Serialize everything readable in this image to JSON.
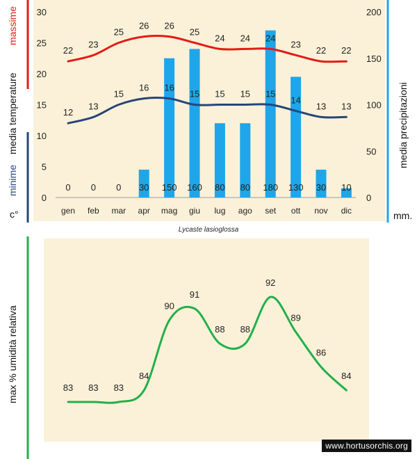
{
  "chart_data": [
    {
      "type": "bar+line",
      "title": "Lycaste lasioglossa",
      "categories": [
        "gen",
        "feb",
        "mar",
        "apr",
        "mag",
        "giu",
        "lug",
        "ago",
        "set",
        "ott",
        "nov",
        "dic"
      ],
      "series": [
        {
          "name": "massime",
          "kind": "line",
          "axis": "left",
          "color": "#e41b17",
          "values": [
            22,
            23,
            25,
            26,
            26,
            25,
            24,
            24,
            24,
            23,
            22,
            22
          ]
        },
        {
          "name": "minime",
          "kind": "line",
          "axis": "left",
          "color": "#27457a",
          "values": [
            12,
            13,
            15,
            16,
            16,
            15,
            15,
            15,
            15,
            14,
            13,
            13
          ]
        },
        {
          "name": "precipitazioni",
          "kind": "bar",
          "axis": "right",
          "color": "#1ea6ea",
          "values": [
            0,
            0,
            0,
            30,
            150,
            160,
            80,
            80,
            180,
            130,
            30,
            10
          ]
        }
      ],
      "left_axis": {
        "ylim": [
          0,
          30
        ],
        "ticks": [
          0,
          5,
          10,
          15,
          20,
          25,
          30
        ],
        "label_top": "massime",
        "label_mid": "media  temperature",
        "label_bottom": "minime",
        "unit": "c°"
      },
      "right_axis": {
        "ylim": [
          0,
          200
        ],
        "ticks": [
          0,
          50,
          100,
          150,
          200
        ],
        "label": "media  precipitazioni",
        "unit": "mm."
      }
    },
    {
      "type": "line",
      "title": "",
      "categories": [
        "gen",
        "feb",
        "mar",
        "apr",
        "mag",
        "giu",
        "lug",
        "ago",
        "set",
        "ott",
        "nov",
        "dic"
      ],
      "series": [
        {
          "name": "umidità relativa",
          "color": "#22b04a",
          "values": [
            83,
            83,
            83,
            84,
            90,
            91,
            88,
            88,
            92,
            89,
            86,
            84
          ]
        }
      ],
      "ylabel": "max  %  umidità relativa"
    }
  ],
  "colors": {
    "max": "#e41b17",
    "min": "#27457a",
    "rain": "#1ea6ea",
    "humidity": "#22b04a",
    "panel": "#fbf1d8"
  },
  "watermark": "www.hortusorchis.org"
}
